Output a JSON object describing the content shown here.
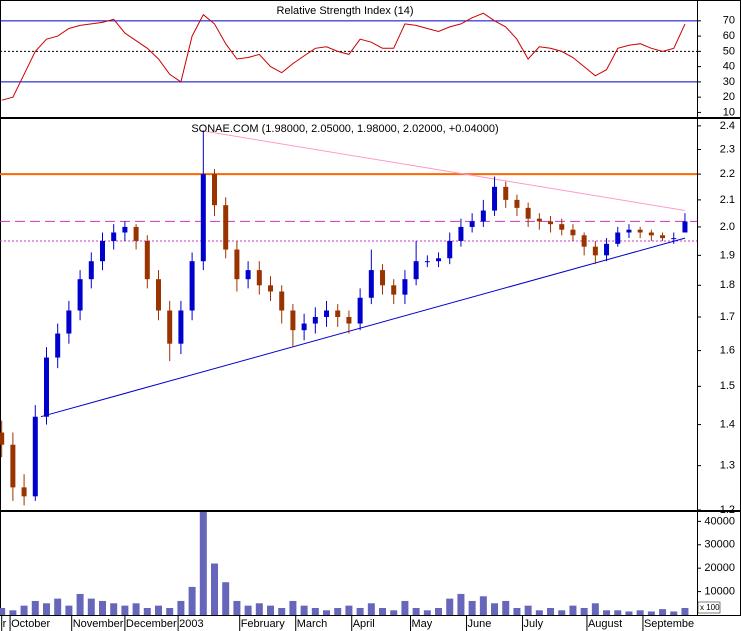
{
  "chart_data": [
    {
      "type": "line",
      "title": "Relative Strength Index (14)",
      "x": [
        -3,
        1,
        5,
        9,
        13,
        17,
        21,
        25,
        29,
        33,
        37,
        41,
        45,
        49,
        53,
        57,
        61,
        65,
        69,
        73,
        77,
        81,
        85,
        89,
        93,
        97,
        101,
        105,
        109,
        113,
        117,
        121,
        125,
        129,
        133,
        137,
        141,
        145,
        149,
        153,
        157,
        161,
        165,
        169,
        173,
        177,
        181,
        185,
        189,
        193,
        197,
        201,
        205,
        209,
        213,
        217,
        221,
        225,
        229,
        233,
        237,
        241
      ],
      "xlim": [
        -3.6,
        245.3
      ],
      "series": [
        {
          "color": "#cc0000",
          "values": [
            18,
            20,
            35,
            50,
            58,
            60,
            65,
            67,
            68,
            69,
            71,
            62,
            57,
            52,
            45,
            35,
            30,
            60,
            74,
            68,
            55,
            45,
            46,
            48,
            40,
            36,
            42,
            47,
            52,
            53,
            50,
            48,
            58,
            56,
            52,
            52,
            68,
            67,
            65,
            63,
            66,
            68,
            72,
            75,
            70,
            66,
            58,
            45,
            53,
            52,
            50,
            46,
            40,
            34,
            38,
            52,
            54,
            55,
            52,
            50,
            52,
            68
          ]
        }
      ],
      "ylim": [
        7,
        83
      ],
      "yticks": [
        10,
        20,
        30,
        40,
        50,
        60,
        70
      ],
      "hlines": [
        {
          "value": 70,
          "color": "#0000cc",
          "style": "solid"
        },
        {
          "value": 50,
          "color": "#000000",
          "style": "dotted"
        },
        {
          "value": 30,
          "color": "#0000cc",
          "style": "solid"
        }
      ]
    },
    {
      "type": "candlestick",
      "title": "SONAE.COM (1.98000, 2.05000, 1.98000, 2.02000, +0.04000)",
      "x": [
        -3,
        1,
        5,
        9,
        13,
        17,
        21,
        25,
        29,
        33,
        37,
        41,
        45,
        49,
        53,
        57,
        61,
        65,
        69,
        73,
        77,
        81,
        85,
        89,
        93,
        97,
        101,
        105,
        109,
        113,
        117,
        121,
        125,
        129,
        133,
        137,
        141,
        145,
        149,
        153,
        157,
        161,
        165,
        169,
        173,
        177,
        181,
        185,
        189,
        193,
        197,
        201,
        205,
        209,
        213,
        217,
        221,
        225,
        229,
        233,
        237,
        241
      ],
      "xlim": [
        -3.6,
        245.3
      ],
      "open": [
        1.38,
        1.35,
        1.25,
        1.23,
        1.42,
        1.58,
        1.65,
        1.72,
        1.82,
        1.88,
        1.95,
        1.98,
        2.0,
        1.95,
        1.82,
        1.72,
        1.62,
        1.72,
        1.88,
        2.2,
        2.08,
        1.92,
        1.82,
        1.85,
        1.8,
        1.78,
        1.72,
        1.66,
        1.68,
        1.7,
        1.72,
        1.7,
        1.68,
        1.76,
        1.85,
        1.8,
        1.77,
        1.82,
        1.88,
        1.88,
        1.89,
        1.95,
        2.0,
        2.02,
        2.06,
        2.15,
        2.1,
        2.07,
        2.03,
        2.02,
        2.01,
        1.99,
        1.97,
        1.93,
        1.9,
        1.94,
        1.98,
        1.99,
        1.98,
        1.97,
        1.96,
        1.98
      ],
      "high": [
        1.41,
        1.38,
        1.28,
        1.45,
        1.61,
        1.68,
        1.75,
        1.85,
        1.91,
        1.98,
        2.01,
        2.02,
        2.01,
        1.97,
        1.85,
        1.75,
        1.75,
        1.91,
        2.38,
        2.22,
        2.11,
        1.95,
        1.88,
        1.88,
        1.83,
        1.8,
        1.74,
        1.71,
        1.73,
        1.75,
        1.74,
        1.72,
        1.79,
        1.92,
        1.87,
        1.82,
        1.85,
        1.95,
        1.9,
        1.91,
        1.98,
        2.03,
        2.05,
        2.1,
        2.19,
        2.17,
        2.12,
        2.09,
        2.05,
        2.04,
        2.03,
        2.01,
        1.98,
        1.95,
        1.96,
        2.0,
        2.01,
        2.0,
        1.99,
        1.98,
        1.98,
        2.05
      ],
      "low": [
        1.32,
        1.22,
        1.21,
        1.22,
        1.4,
        1.55,
        1.62,
        1.69,
        1.79,
        1.85,
        1.92,
        1.95,
        1.92,
        1.79,
        1.69,
        1.57,
        1.59,
        1.69,
        1.85,
        2.04,
        1.89,
        1.78,
        1.79,
        1.77,
        1.75,
        1.68,
        1.61,
        1.63,
        1.65,
        1.67,
        1.67,
        1.65,
        1.66,
        1.74,
        1.77,
        1.74,
        1.74,
        1.8,
        1.86,
        1.86,
        1.87,
        1.93,
        1.98,
        2.0,
        2.04,
        2.07,
        2.04,
        2.0,
        1.99,
        1.98,
        1.97,
        1.95,
        1.9,
        1.87,
        1.88,
        1.93,
        1.96,
        1.96,
        1.95,
        1.95,
        1.94,
        1.98
      ],
      "close": [
        1.35,
        1.25,
        1.23,
        1.42,
        1.58,
        1.65,
        1.72,
        1.82,
        1.88,
        1.95,
        1.98,
        2.0,
        1.95,
        1.82,
        1.72,
        1.62,
        1.72,
        1.88,
        2.2,
        2.08,
        1.92,
        1.82,
        1.85,
        1.8,
        1.78,
        1.72,
        1.66,
        1.68,
        1.7,
        1.72,
        1.7,
        1.68,
        1.76,
        1.85,
        1.8,
        1.77,
        1.82,
        1.88,
        1.88,
        1.89,
        1.95,
        2.0,
        2.02,
        2.06,
        2.15,
        2.1,
        2.07,
        2.03,
        2.02,
        2.01,
        1.99,
        1.97,
        1.93,
        1.9,
        1.94,
        1.98,
        1.99,
        1.98,
        1.97,
        1.96,
        1.96,
        2.02
      ],
      "up_color": "#0000cc",
      "down_color": "#993300",
      "ylim": [
        1.2,
        2.43
      ],
      "yscale": "log",
      "yticks": [
        1.2,
        1.3,
        1.4,
        1.5,
        1.6,
        1.7,
        1.8,
        1.9,
        {
          "value": 2,
          "label": "2.0"
        },
        2.1,
        2.2,
        2.3,
        2.4
      ],
      "hlines": [
        {
          "value": 2.2,
          "color": "#ff6600",
          "style": "solid"
        },
        {
          "value": 2.02,
          "color": "#cc33cc",
          "style": "dashed"
        },
        {
          "value": 1.95,
          "color": "#cc33cc",
          "style": "dotted"
        }
      ],
      "lines": [
        {
          "color": "#0000cc",
          "x": [
            11,
            241
          ],
          "y": [
            1.42,
            1.96
          ]
        },
        {
          "color": "#ff99cc",
          "x": [
            68,
            241
          ],
          "y": [
            2.38,
            2.06
          ]
        }
      ]
    },
    {
      "type": "bar",
      "x": [
        -3,
        1,
        5,
        9,
        13,
        17,
        21,
        25,
        29,
        33,
        37,
        41,
        45,
        49,
        53,
        57,
        61,
        65,
        69,
        73,
        77,
        81,
        85,
        89,
        93,
        97,
        101,
        105,
        109,
        113,
        117,
        121,
        125,
        129,
        133,
        137,
        141,
        145,
        149,
        153,
        157,
        161,
        165,
        169,
        173,
        177,
        181,
        185,
        189,
        193,
        197,
        201,
        205,
        209,
        213,
        217,
        221,
        225,
        229,
        233,
        237,
        241
      ],
      "xlim": [
        -3.6,
        245.3
      ],
      "values": [
        3000,
        2000,
        4000,
        6000,
        5000,
        7000,
        4000,
        9000,
        7000,
        6000,
        5000,
        4000,
        5000,
        3000,
        4000,
        3000,
        6000,
        12000,
        44000,
        22000,
        14000,
        6000,
        4000,
        5000,
        4000,
        3000,
        6000,
        4000,
        3000,
        2000,
        3000,
        4000,
        3000,
        5000,
        3000,
        2000,
        6000,
        3000,
        2000,
        3000,
        7000,
        9000,
        6000,
        8000,
        5000,
        6000,
        3000,
        4000,
        2000,
        3000,
        2000,
        4000,
        3000,
        5000,
        2000,
        2000,
        1500,
        2000,
        1500,
        2500,
        1500,
        3000
      ],
      "color": "#6666bb",
      "ylim": [
        0,
        44000
      ],
      "yticks": [
        10000,
        20000,
        30000,
        40000
      ],
      "unit_label": "x 100",
      "xticks": [
        {
          "value": -3,
          "label": "r"
        },
        {
          "value": 0,
          "label": "October"
        },
        {
          "value": 22,
          "label": "November"
        },
        {
          "value": 41,
          "label": "December"
        },
        {
          "value": 60,
          "label": "2003"
        },
        {
          "value": 82,
          "label": "February"
        },
        {
          "value": 102,
          "label": "March"
        },
        {
          "value": 122,
          "label": "April"
        },
        {
          "value": 143,
          "label": "May"
        },
        {
          "value": 163,
          "label": "June"
        },
        {
          "value": 183,
          "label": "July"
        },
        {
          "value": 206,
          "label": "August"
        },
        {
          "value": 226,
          "label": "Septembe"
        }
      ]
    }
  ]
}
